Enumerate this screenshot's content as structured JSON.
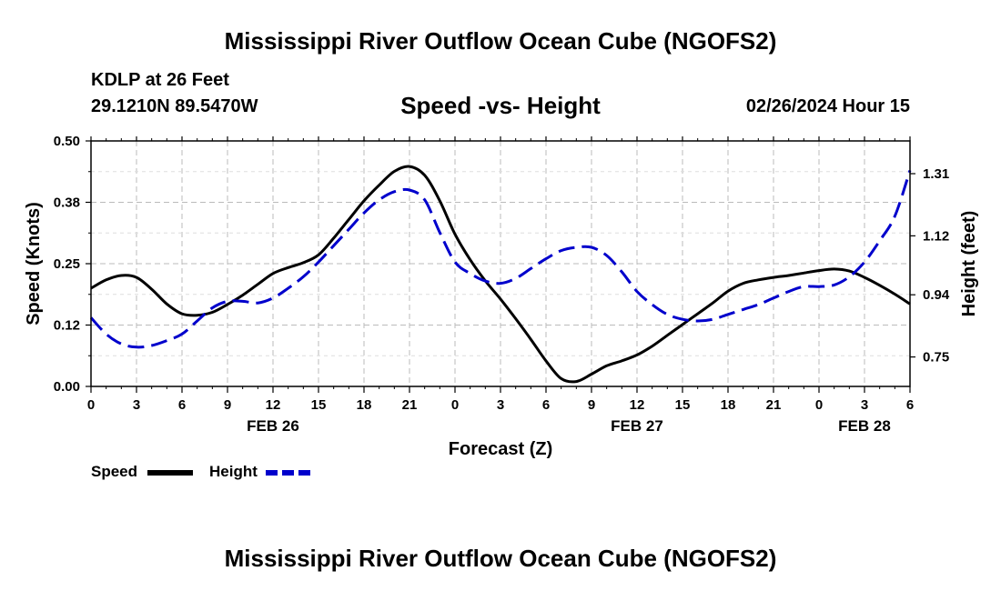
{
  "title": "Mississippi River Outflow Ocean Cube (NGOFS2)",
  "footer_title": "Mississippi River Outflow Ocean Cube (NGOFS2)",
  "station": "KDLP at 26 Feet",
  "location": "29.1210N  89.5470W",
  "datetime": "02/26/2024 Hour 15",
  "colors": {
    "speed": "#000000",
    "height": "#0000cc",
    "grid": "#bbbbbb"
  },
  "chart_data": {
    "type": "line",
    "title": "Speed -vs- Height",
    "xlabel": "Forecast (Z)",
    "ylabel": "Speed (Knots)",
    "y2label": "Height (feet)",
    "x_range": [
      0,
      54
    ],
    "ylim": [
      0,
      0.5
    ],
    "y2lim": [
      0.66,
      1.41
    ],
    "x_ticks": [
      0,
      3,
      6,
      9,
      12,
      15,
      18,
      21,
      24,
      27,
      30,
      33,
      36,
      39,
      42,
      45,
      48,
      51,
      54
    ],
    "x_tick_labels": [
      "0",
      "3",
      "6",
      "9",
      "12",
      "15",
      "18",
      "21",
      "0",
      "3",
      "6",
      "9",
      "12",
      "15",
      "18",
      "21",
      "0",
      "3",
      "6"
    ],
    "date_labels": [
      {
        "x": 12,
        "label": "FEB 26"
      },
      {
        "x": 36,
        "label": "FEB 27"
      },
      {
        "x": 51,
        "label": "FEB 28"
      }
    ],
    "y_ticks": [
      0,
      0.125,
      0.25,
      0.375,
      0.5
    ],
    "y_tick_labels": [
      "0.00",
      "0.12",
      "0.25",
      "0.38",
      "0.50"
    ],
    "y2_ticks": [
      0.75,
      0.94,
      1.12,
      1.31
    ],
    "y2_tick_labels": [
      "0.75",
      "0.94",
      "1.12",
      "1.31"
    ],
    "series": [
      {
        "name": "Speed",
        "axis": "left",
        "style": "solid",
        "x": [
          0,
          1,
          2,
          3,
          4,
          5,
          6,
          7,
          8,
          9,
          10,
          11,
          12,
          13,
          14,
          15,
          16,
          17,
          18,
          19,
          20,
          21,
          22,
          23,
          24,
          25,
          26,
          27,
          28,
          29,
          30,
          31,
          32,
          33,
          34,
          35,
          36,
          37,
          38,
          39,
          40,
          41,
          42,
          43,
          44,
          45,
          46,
          47,
          48,
          49,
          50,
          51,
          52,
          53,
          54
        ],
        "values": [
          0.2,
          0.217,
          0.226,
          0.222,
          0.198,
          0.168,
          0.148,
          0.145,
          0.151,
          0.167,
          0.186,
          0.208,
          0.23,
          0.242,
          0.252,
          0.268,
          0.302,
          0.34,
          0.378,
          0.41,
          0.438,
          0.448,
          0.43,
          0.378,
          0.31,
          0.258,
          0.215,
          0.178,
          0.138,
          0.096,
          0.052,
          0.016,
          0.01,
          0.025,
          0.042,
          0.052,
          0.064,
          0.082,
          0.104,
          0.126,
          0.148,
          0.17,
          0.194,
          0.21,
          0.217,
          0.222,
          0.226,
          0.231,
          0.236,
          0.239,
          0.235,
          0.222,
          0.206,
          0.188,
          0.168
        ]
      },
      {
        "name": "Height",
        "axis": "right",
        "style": "dashed",
        "x": [
          0,
          1,
          2,
          3,
          4,
          5,
          6,
          7,
          8,
          9,
          10,
          11,
          12,
          13,
          14,
          15,
          16,
          17,
          18,
          19,
          20,
          21,
          22,
          23,
          24,
          25,
          26,
          27,
          28,
          29,
          30,
          31,
          32,
          33,
          34,
          35,
          36,
          37,
          38,
          39,
          40,
          41,
          42,
          43,
          44,
          45,
          46,
          47,
          48,
          49,
          50,
          51,
          52,
          53,
          54
        ],
        "values": [
          0.87,
          0.82,
          0.79,
          0.78,
          0.785,
          0.8,
          0.82,
          0.86,
          0.9,
          0.92,
          0.92,
          0.915,
          0.93,
          0.96,
          0.995,
          1.04,
          1.09,
          1.14,
          1.19,
          1.23,
          1.255,
          1.26,
          1.23,
          1.13,
          1.04,
          1.005,
          0.982,
          0.975,
          0.99,
          1.02,
          1.05,
          1.075,
          1.085,
          1.085,
          1.06,
          1.01,
          0.95,
          0.91,
          0.88,
          0.865,
          0.86,
          0.865,
          0.88,
          0.895,
          0.91,
          0.93,
          0.95,
          0.965,
          0.965,
          0.97,
          0.995,
          1.04,
          1.105,
          1.18,
          1.32
        ]
      }
    ],
    "legend": [
      "Speed",
      "Height"
    ],
    "legend_position": "bottom-left",
    "grid": true
  }
}
